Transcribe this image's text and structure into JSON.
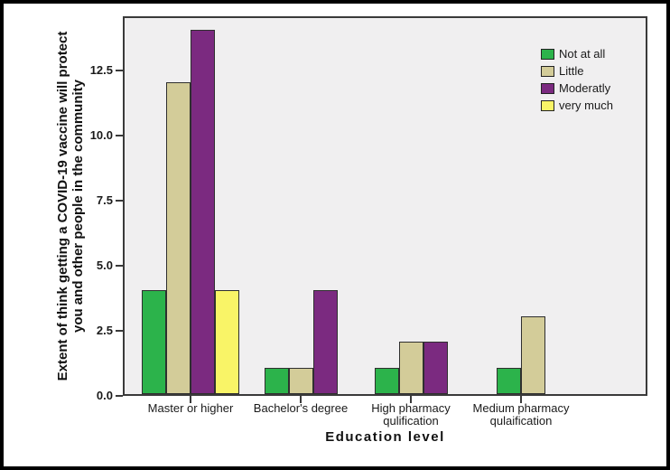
{
  "chart_data": {
    "type": "bar",
    "title": "",
    "xlabel": "Education level",
    "ylabel": "Extent of think getting a COVID-19 vaccine  will protect you and other people in the community",
    "ylabel_lines": [
      "Extent of think getting a COVID-19 vaccine  will protect",
      "you and other people in the community"
    ],
    "categories": [
      "Master or higher",
      "Bachelor's degree",
      "High pharmacy qulification",
      "Medium pharmacy qulaification"
    ],
    "category_label_lines": [
      [
        "Master or higher"
      ],
      [
        "Bachelor's degree"
      ],
      [
        "High pharmacy",
        "qulification"
      ],
      [
        "Medium pharmacy",
        "qulaification"
      ]
    ],
    "series": [
      {
        "name": "Not at all",
        "color": "#2cb34b",
        "values": [
          4,
          1,
          1,
          1
        ]
      },
      {
        "name": "Little",
        "color": "#d3cc99",
        "values": [
          12,
          1,
          2,
          3
        ]
      },
      {
        "name": "Moderatly",
        "color": "#7b2a80",
        "values": [
          14,
          4,
          2,
          0
        ]
      },
      {
        "name": "very much",
        "color": "#f9f467",
        "values": [
          4,
          0,
          0,
          0
        ]
      }
    ],
    "ytick_labels": [
      "0.0",
      "2.5",
      "5.0",
      "7.5",
      "10.0",
      "12.5"
    ],
    "ylim": [
      0,
      14.6
    ],
    "grid": false,
    "legend_position": "top-right",
    "plot_background": "#f0eff0",
    "bar_border_color": "#2f2f2f",
    "axis_color": "#3a3a3a",
    "text_color": "#111111",
    "frame_border_color": "#000000"
  }
}
